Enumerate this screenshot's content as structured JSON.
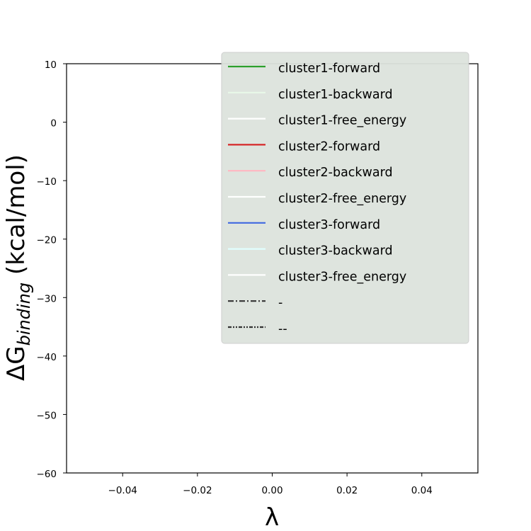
{
  "chart_data": {
    "type": "line",
    "title": "",
    "xlabel": "λ",
    "ylabel": "ΔG",
    "ylabel_subscript": "binding",
    "ylabel_suffix": " (kcal/mol)",
    "xlim": [
      -0.055,
      0.055
    ],
    "ylim": [
      -60,
      10
    ],
    "x_ticks": [
      -0.04,
      -0.02,
      0.0,
      0.02,
      0.04
    ],
    "x_tick_labels": [
      "−0.04",
      "−0.02",
      "0.00",
      "0.02",
      "0.04"
    ],
    "y_ticks": [
      10,
      0,
      -10,
      -20,
      -30,
      -40,
      -50,
      -60
    ],
    "y_tick_labels": [
      "10",
      "0",
      "−10",
      "−20",
      "−30",
      "−40",
      "−50",
      "−60"
    ],
    "grid": false,
    "legend_position": "top-right",
    "series": [
      {
        "name": "cluster1-forward",
        "color": "#2ca02c",
        "style": "solid",
        "x": [],
        "y": []
      },
      {
        "name": "cluster1-backward",
        "color": "#e8f8e8",
        "style": "solid",
        "x": [],
        "y": []
      },
      {
        "name": "cluster1-free_energy",
        "color": "#ffffff",
        "style": "solid",
        "x": [],
        "y": []
      },
      {
        "name": "cluster2-forward",
        "color": "#d62728",
        "style": "solid",
        "x": [],
        "y": []
      },
      {
        "name": "cluster2-backward",
        "color": "#ffb6c1",
        "style": "solid",
        "x": [],
        "y": []
      },
      {
        "name": "cluster2-free_energy",
        "color": "#ffffff",
        "style": "solid",
        "x": [],
        "y": []
      },
      {
        "name": "cluster3-forward",
        "color": "#4169e1",
        "style": "solid",
        "x": [],
        "y": []
      },
      {
        "name": "cluster3-backward",
        "color": "#e0ffff",
        "style": "solid",
        "x": [],
        "y": []
      },
      {
        "name": "cluster3-free_energy",
        "color": "#ffffff",
        "style": "solid",
        "x": [],
        "y": []
      },
      {
        "name": "-",
        "color": "#333333",
        "style": "dashdot",
        "x": [],
        "y": []
      },
      {
        "name": "--",
        "color": "#333333",
        "style": "dashdotdot",
        "x": [],
        "y": []
      }
    ],
    "legend_background": "#dde3dd"
  }
}
